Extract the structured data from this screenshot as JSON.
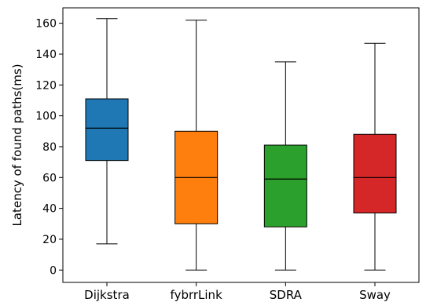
{
  "chart_data": {
    "type": "boxplot",
    "ylabel": "Latency of found paths(ms)",
    "xlabel": "",
    "ylim": [
      -8,
      170
    ],
    "yticks": [
      0,
      20,
      40,
      60,
      80,
      100,
      120,
      140,
      160
    ],
    "grid": false,
    "categories": [
      "Dijkstra",
      "fybrrLink",
      "SDRA",
      "Sway"
    ],
    "boxes": [
      {
        "name": "Dijkstra",
        "min": 17,
        "q1": 71,
        "median": 92,
        "q3": 111,
        "max": 163,
        "color": "#1f77b4"
      },
      {
        "name": "fybrrLink",
        "min": 0,
        "q1": 30,
        "median": 60,
        "q3": 90,
        "max": 162,
        "color": "#ff7f0e"
      },
      {
        "name": "SDRA",
        "min": 0,
        "q1": 28,
        "median": 59,
        "q3": 81,
        "max": 135,
        "color": "#2ca02c"
      },
      {
        "name": "Sway",
        "min": 0,
        "q1": 37,
        "median": 60,
        "q3": 88,
        "max": 147,
        "color": "#d62728"
      }
    ]
  }
}
